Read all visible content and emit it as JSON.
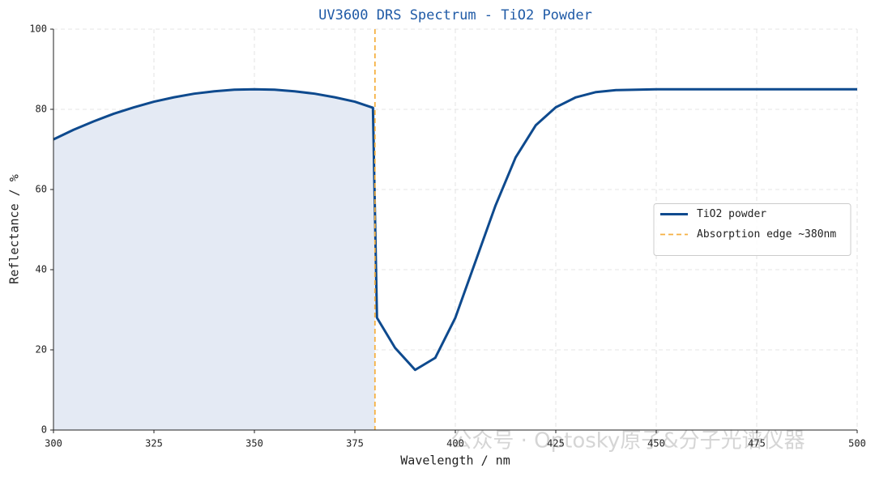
{
  "chart_data": {
    "type": "line",
    "title": "UV3600 DRS Spectrum - TiO2 Powder",
    "x_label": "Wavelength / nm",
    "y_label": "Reflectance / %",
    "series": [
      {
        "name": "TiO2 powder",
        "color": "#0e4a8e",
        "x": [
          300,
          305,
          310,
          315,
          320,
          325,
          330,
          335,
          340,
          345,
          350,
          355,
          360,
          365,
          370,
          375,
          379.5,
          380.5,
          385,
          390,
          395,
          400,
          405,
          410,
          415,
          420,
          425,
          430,
          435,
          440,
          450,
          475,
          500
        ],
        "values": [
          72.5,
          74.9,
          77,
          78.9,
          80.5,
          81.9,
          83,
          83.9,
          84.5,
          84.9,
          85,
          84.9,
          84.5,
          83.9,
          83,
          81.9,
          80.4,
          28,
          20.5,
          15,
          18,
          28,
          42,
          56,
          68,
          76,
          80.5,
          83,
          84.3,
          84.8,
          85,
          85,
          85
        ]
      }
    ],
    "vlines": [
      {
        "name": "Absorption edge ~380nm",
        "x": 380,
        "color": "#f5b041"
      }
    ],
    "fill_color": "#e4eaf4",
    "fill_below_edge": true,
    "xlim": [
      300,
      500
    ],
    "xticks": [
      300,
      325,
      350,
      375,
      400,
      425,
      450,
      475,
      500
    ],
    "ylim": [
      0,
      100
    ],
    "yticks": [
      0,
      20,
      40,
      60,
      80,
      100
    ],
    "grid": true,
    "legend": "center right",
    "watermark": "公众号 · Optosky原子&分子光谱仪器"
  }
}
